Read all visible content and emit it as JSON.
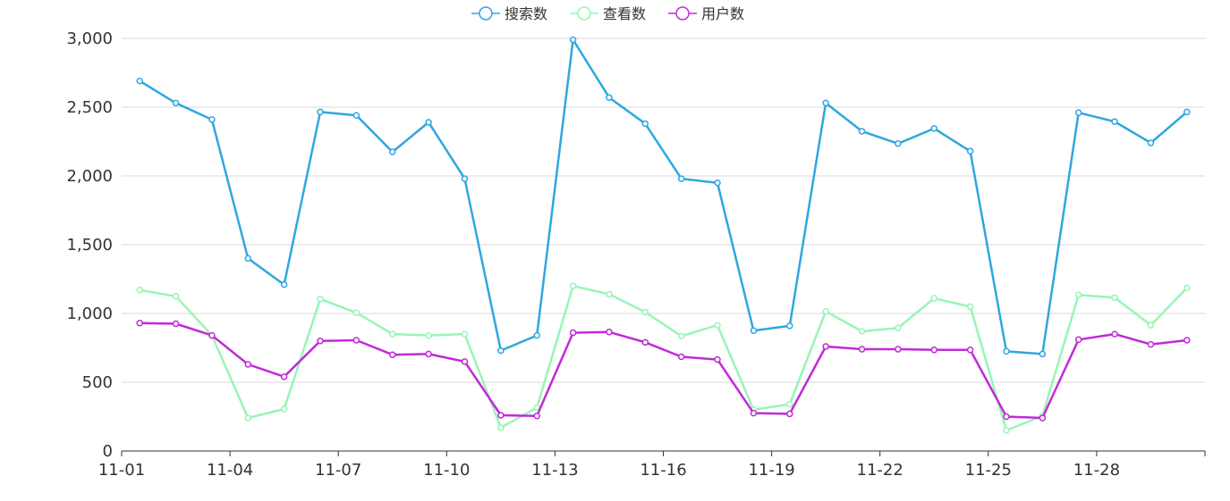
{
  "chart_data": {
    "type": "line",
    "categories": [
      "11-01",
      "11-02",
      "11-03",
      "11-04",
      "11-05",
      "11-06",
      "11-07",
      "11-08",
      "11-09",
      "11-10",
      "11-11",
      "11-12",
      "11-13",
      "11-14",
      "11-15",
      "11-16",
      "11-17",
      "11-18",
      "11-19",
      "11-20",
      "11-21",
      "11-22",
      "11-23",
      "11-24",
      "11-25",
      "11-26",
      "11-27",
      "11-28",
      "11-29",
      "11-30"
    ],
    "x_tick_labels": [
      "11-01",
      "11-04",
      "11-07",
      "11-10",
      "11-13",
      "11-16",
      "11-19",
      "11-22",
      "11-25",
      "11-28"
    ],
    "y_tick_labels": [
      "0",
      "500",
      "1,000",
      "1,500",
      "2,000",
      "2,500",
      "3,000"
    ],
    "ylim": [
      0,
      3000
    ],
    "grid": true,
    "legend_position": "top-center",
    "series": [
      {
        "name": "搜索数",
        "color": "#2ea7e0",
        "values": [
          2690,
          2530,
          2410,
          1400,
          1210,
          2465,
          2440,
          2175,
          2390,
          1980,
          730,
          840,
          2990,
          2570,
          2380,
          1980,
          1950,
          875,
          910,
          2530,
          2325,
          2235,
          2345,
          2180,
          725,
          705,
          2460,
          2395,
          2240,
          2465
        ]
      },
      {
        "name": "查看数",
        "color": "#98f5b5",
        "values": [
          1170,
          1125,
          840,
          240,
          305,
          1105,
          1005,
          850,
          840,
          850,
          170,
          315,
          1200,
          1140,
          1010,
          835,
          915,
          300,
          340,
          1015,
          870,
          895,
          1110,
          1050,
          150,
          255,
          1135,
          1115,
          915,
          1185
        ]
      },
      {
        "name": "用户数",
        "color": "#c12ad8",
        "values": [
          930,
          925,
          840,
          630,
          540,
          800,
          805,
          700,
          705,
          650,
          260,
          255,
          860,
          865,
          790,
          685,
          665,
          275,
          270,
          760,
          740,
          740,
          735,
          735,
          250,
          240,
          810,
          850,
          775,
          805
        ]
      }
    ]
  }
}
